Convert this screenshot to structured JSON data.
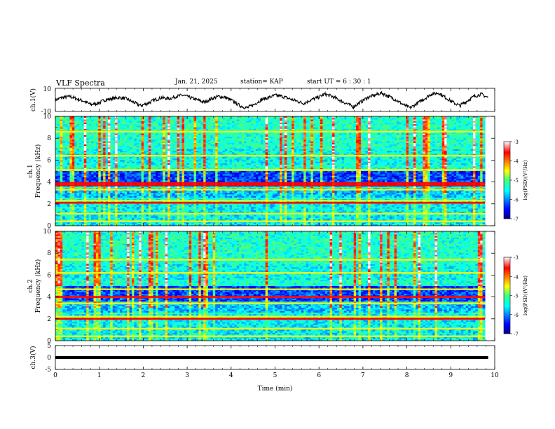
{
  "header": {
    "title": "VLF Spectra",
    "date": "Jan. 21, 2025",
    "station": "station= KAP",
    "start": "start  UT =   6 : 30 : 1"
  },
  "chart_data": [
    {
      "type": "line",
      "title": "ch.1(V)",
      "ylabel": "ch.1(V)",
      "ylim": [
        -10,
        10
      ],
      "yticks": [
        "10",
        "-10"
      ],
      "xlim": [
        0,
        10
      ],
      "x_start": 0,
      "x_end": 9.85,
      "description_points": [
        0,
        2,
        3,
        1,
        -1,
        -4,
        -3,
        0,
        1,
        2,
        1,
        -2,
        -5,
        -3,
        0,
        2,
        1,
        3,
        4,
        2,
        0,
        -2,
        1,
        3,
        2,
        -1,
        -5,
        -7,
        -4,
        0,
        2,
        4,
        3,
        1,
        -1,
        -3,
        0,
        2,
        5,
        3,
        0,
        -3,
        -6,
        -2,
        2,
        4,
        6,
        3,
        0,
        -4,
        -7,
        -3,
        1,
        5,
        6,
        2,
        -2,
        -5,
        -1,
        3,
        5,
        2
      ]
    },
    {
      "type": "heatmap",
      "channel": "ch.1",
      "ylabel": "ch.1\nFrequency (kHz)",
      "xlim": [
        0,
        10
      ],
      "ylim": [
        0,
        10
      ],
      "yticks": [
        "0",
        "2",
        "4",
        "6",
        "8",
        "10"
      ],
      "colorbar": {
        "label": "log(PSD)(V²/Hz)",
        "ticks": [
          "-3",
          "-4",
          "-5",
          "-6",
          "-7"
        ],
        "range": [
          -7,
          -3
        ]
      },
      "bands_khz": [
        0.4,
        1.1,
        2.1,
        2.3,
        3.3,
        3.7,
        3.9,
        5.1,
        6.4,
        8.6
      ],
      "strong_bands_khz": [
        2.1,
        3.7,
        3.9
      ]
    },
    {
      "type": "heatmap",
      "channel": "ch.2",
      "ylabel": "ch.2\nFrequency (kHz)",
      "xlim": [
        0,
        10
      ],
      "ylim": [
        0,
        10
      ],
      "yticks": [
        "0",
        "2",
        "4",
        "6",
        "8",
        "10"
      ],
      "colorbar": {
        "label": "log(PSD)(V²/Hz)",
        "ticks": [
          "-3",
          "-4",
          "-5",
          "-6",
          "-7"
        ],
        "range": [
          -7,
          -3
        ]
      },
      "bands_khz": [
        0.4,
        1.1,
        2.0,
        2.2,
        3.4,
        4.0,
        4.7,
        6.2,
        7.4
      ],
      "strong_bands_khz": [
        2.0,
        4.0
      ]
    },
    {
      "type": "line",
      "title": "ch.3(V)",
      "ylabel": "ch.3(V)",
      "ylim": [
        -5,
        5
      ],
      "yticks": [
        "5",
        "0",
        "-5"
      ],
      "xlim": [
        0,
        10
      ],
      "level_v": 0,
      "x_end": 9.85
    }
  ],
  "xaxis": {
    "label": "Time (min)",
    "ticks": [
      "0",
      "1",
      "2",
      "3",
      "4",
      "5",
      "6",
      "7",
      "8",
      "9",
      "10"
    ]
  }
}
